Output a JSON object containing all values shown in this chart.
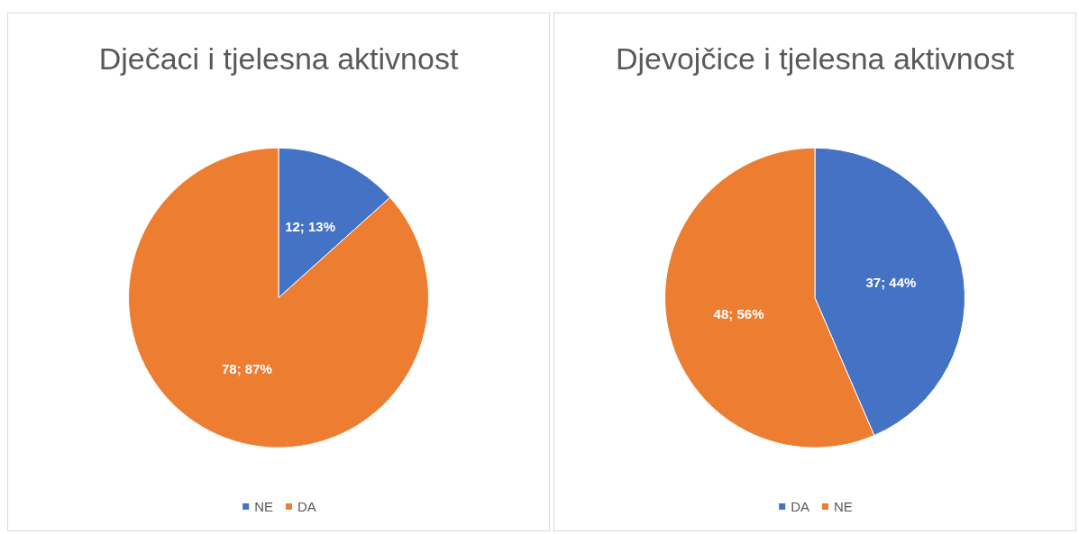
{
  "chart_data": [
    {
      "type": "pie",
      "title": "Dječaci i tjelesna aktivnost",
      "categories": [
        "NE",
        "DA"
      ],
      "values": [
        12,
        78
      ],
      "colors": [
        "#4472c4",
        "#ed7d31"
      ],
      "value_labels": [
        "12; 13%",
        "78; 87%"
      ],
      "legend": "bottom"
    },
    {
      "type": "pie",
      "title": "Djevojčice i tjelesna aktivnost",
      "categories": [
        "DA",
        "NE"
      ],
      "values": [
        37,
        48
      ],
      "colors": [
        "#4472c4",
        "#ed7d31"
      ],
      "value_labels": [
        "37; 44%",
        "48; 56%"
      ],
      "legend": "bottom"
    }
  ]
}
